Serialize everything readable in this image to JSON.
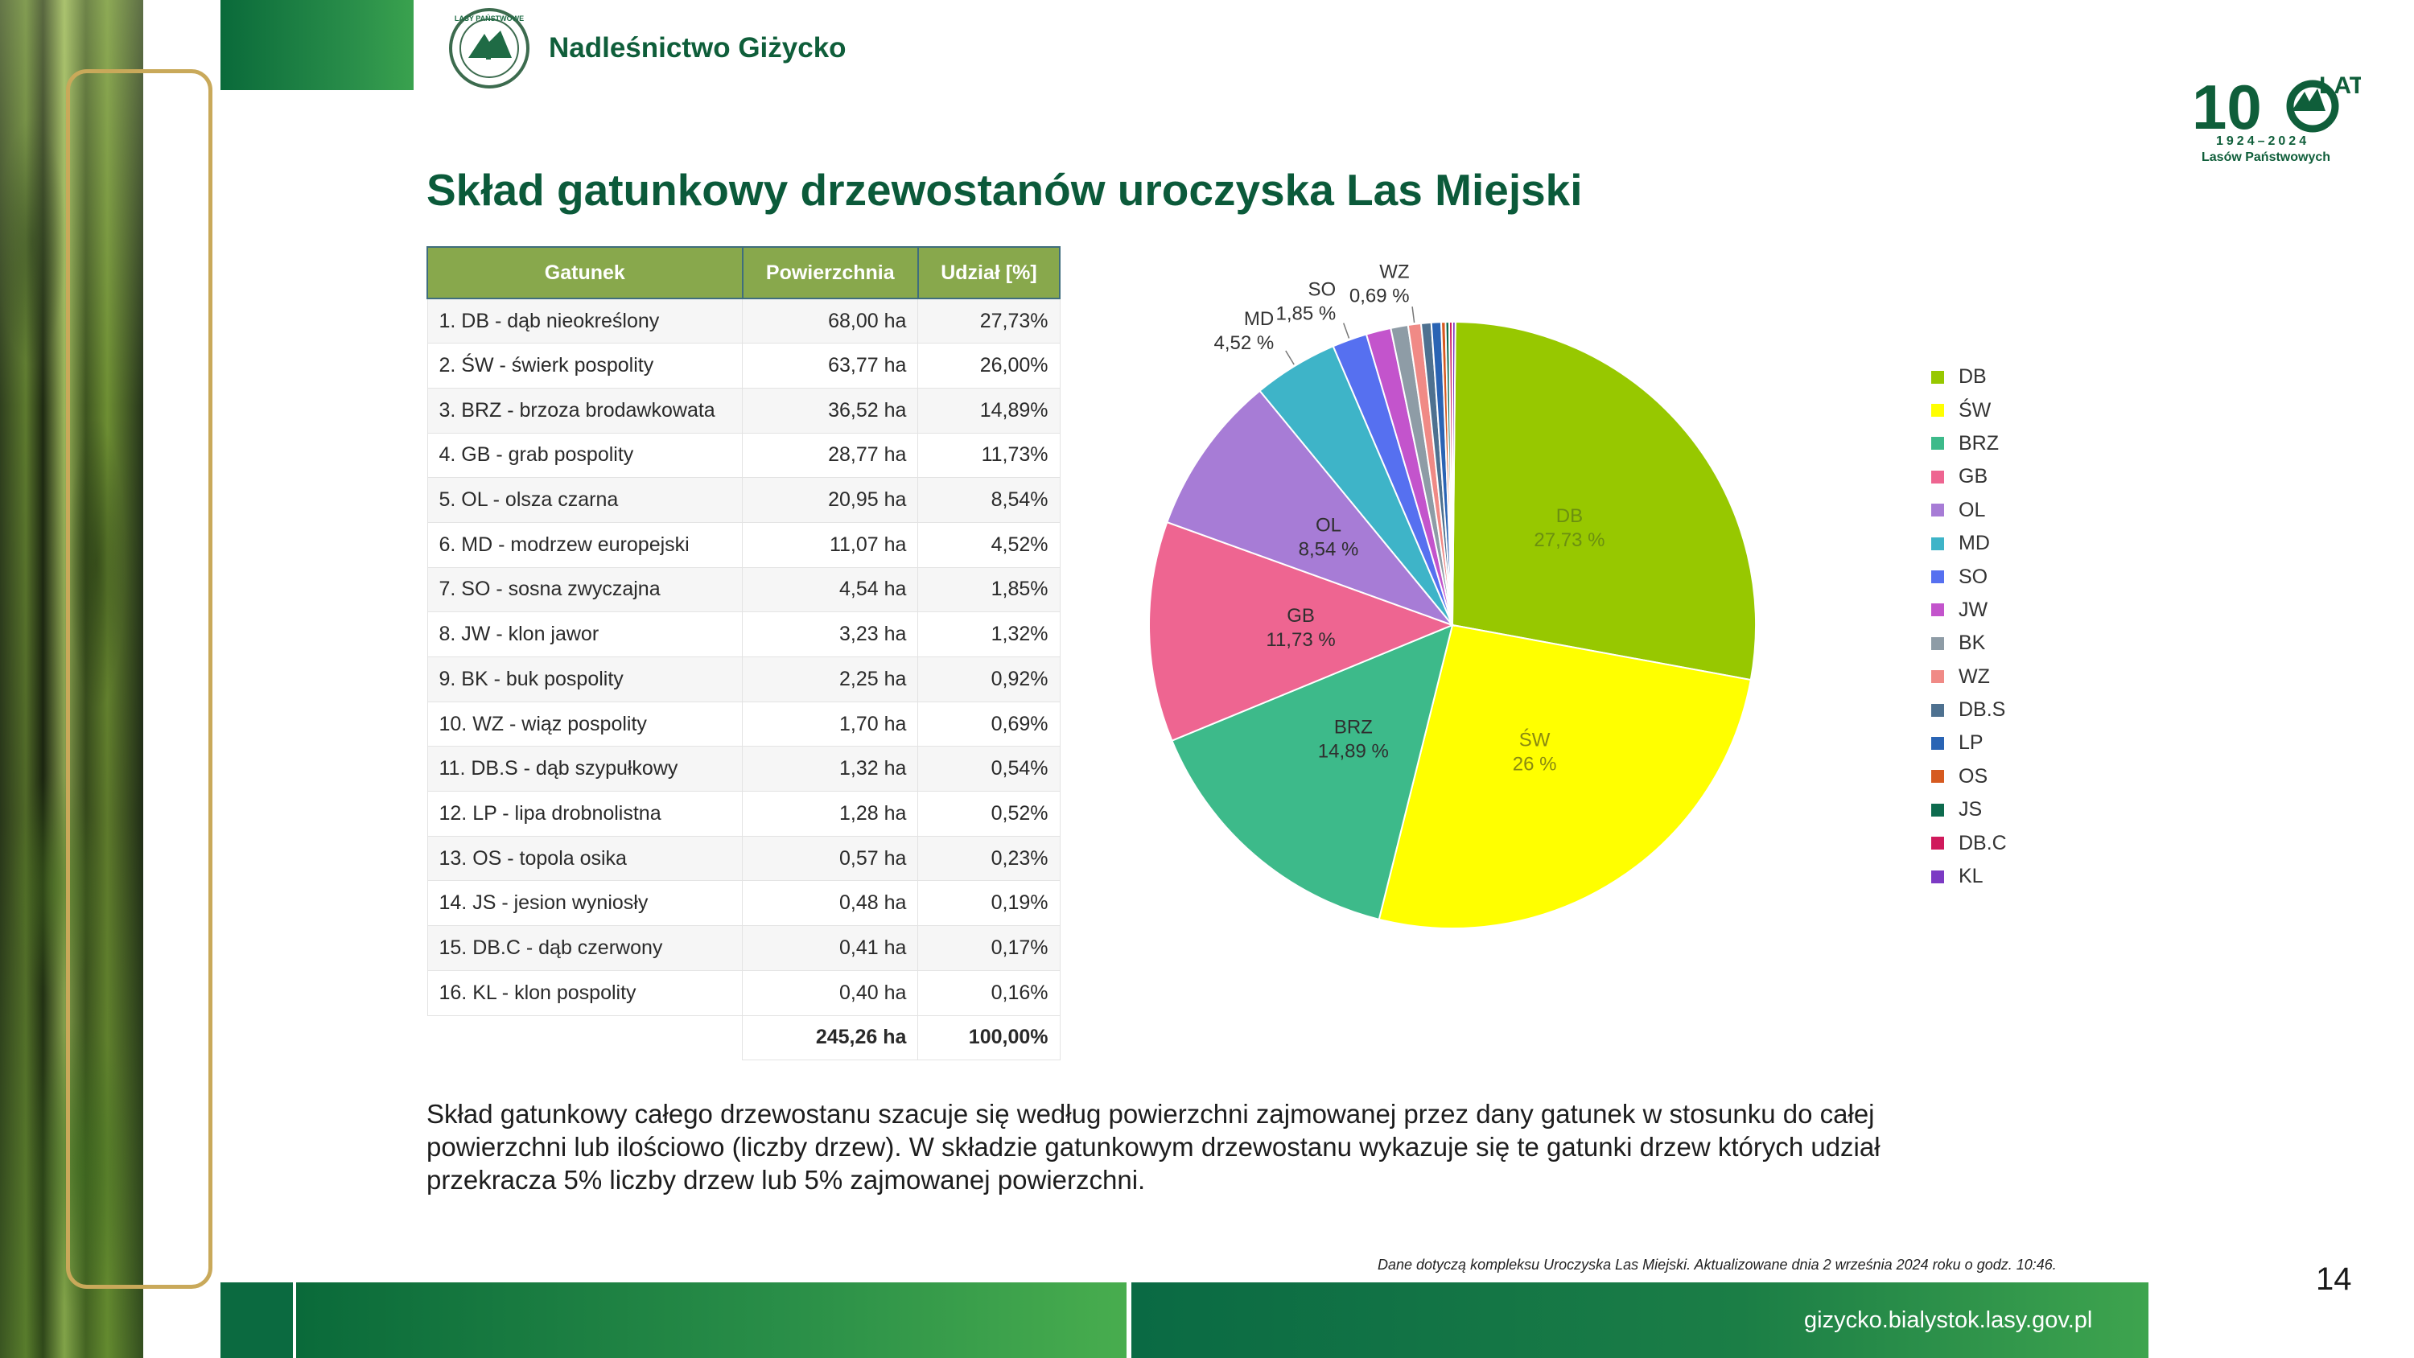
{
  "header": {
    "org_name": "Nadleśnictwo Giżycko",
    "seal_text": "LASY PAŃSTWOWE",
    "jubilee": {
      "number_prefix": "10",
      "lat": "LAT",
      "years": "1924–2024",
      "subtitle": "Lasów Państwowych"
    }
  },
  "title": "Skład gatunkowy drzewostanów uroczyska Las Miejski",
  "table": {
    "columns": [
      "Gatunek",
      "Powierzchnia",
      "Udział [%]"
    ],
    "rows": [
      {
        "name": "1. DB - dąb nieokreślony",
        "area": "68,00 ha",
        "share": "27,73%"
      },
      {
        "name": "2. ŚW - świerk pospolity",
        "area": "63,77 ha",
        "share": "26,00%"
      },
      {
        "name": "3. BRZ - brzoza brodawkowata",
        "area": "36,52 ha",
        "share": "14,89%"
      },
      {
        "name": "4. GB - grab pospolity",
        "area": "28,77 ha",
        "share": "11,73%"
      },
      {
        "name": "5. OL - olsza czarna",
        "area": "20,95 ha",
        "share": "8,54%"
      },
      {
        "name": "6. MD - modrzew europejski",
        "area": "11,07 ha",
        "share": "4,52%"
      },
      {
        "name": "7. SO - sosna zwyczajna",
        "area": "4,54 ha",
        "share": "1,85%"
      },
      {
        "name": "8. JW - klon jawor",
        "area": "3,23 ha",
        "share": "1,32%"
      },
      {
        "name": "9. BK - buk pospolity",
        "area": "2,25 ha",
        "share": "0,92%"
      },
      {
        "name": "10. WZ - wiąz pospolity",
        "area": "1,70 ha",
        "share": "0,69%"
      },
      {
        "name": "11. DB.S - dąb szypułkowy",
        "area": "1,32 ha",
        "share": "0,54%"
      },
      {
        "name": "12. LP - lipa drobnolistna",
        "area": "1,28 ha",
        "share": "0,52%"
      },
      {
        "name": "13. OS - topola osika",
        "area": "0,57 ha",
        "share": "0,23%"
      },
      {
        "name": "14. JS - jesion wyniosły",
        "area": "0,48 ha",
        "share": "0,19%"
      },
      {
        "name": "15. DB.C - dąb czerwony",
        "area": "0,41 ha",
        "share": "0,17%"
      },
      {
        "name": "16. KL - klon pospolity",
        "area": "0,40 ha",
        "share": "0,16%"
      }
    ],
    "total": {
      "area": "245,26 ha",
      "share": "100,00%"
    }
  },
  "chart_data": {
    "type": "pie",
    "labels": [
      "DB",
      "ŚW",
      "BRZ",
      "GB",
      "OL",
      "MD",
      "SO",
      "JW",
      "BK",
      "WZ",
      "DB.S",
      "LP",
      "OS",
      "JS",
      "DB.C",
      "KL"
    ],
    "values": [
      27.73,
      26.0,
      14.89,
      11.73,
      8.54,
      4.52,
      1.85,
      1.32,
      0.92,
      0.69,
      0.54,
      0.52,
      0.23,
      0.19,
      0.17,
      0.16
    ],
    "colors": [
      "#97c800",
      "#ffff00",
      "#3dba8a",
      "#ee6591",
      "#a77cd6",
      "#3eb4c8",
      "#5670f0",
      "#c354cc",
      "#8e9ca6",
      "#f08a86",
      "#4e7190",
      "#2a64b4",
      "#d65a20",
      "#0d6b4e",
      "#d01a5c",
      "#7c3ac4"
    ],
    "data_labels": [
      {
        "series": "DB",
        "name": "DB",
        "value": "27,73 %"
      },
      {
        "series": "ŚW",
        "name": "ŚW",
        "value": "26 %"
      },
      {
        "series": "BRZ",
        "name": "BRZ",
        "value": "14,89 %"
      },
      {
        "series": "GB",
        "name": "GB",
        "value": "11,73 %"
      },
      {
        "series": "OL",
        "name": "OL",
        "value": "8,54 %"
      },
      {
        "series": "MD",
        "name": "MD",
        "value": "4,52 %"
      },
      {
        "series": "SO",
        "name": "SO",
        "value": "1,85 %"
      },
      {
        "series": "WZ",
        "name": "WZ",
        "value": "0,69 %"
      }
    ],
    "legend_position": "right"
  },
  "description": "Skład gatunkowy całego drzewostanu szacuje się według powierzchni zajmowanej przez dany gatunek w stosunku do całej powierzchni lub ilościowo (liczby drzew). W składzie gatunkowym drzewostanu wykazuje się te gatunki drzew których udział przekracza 5% liczby drzew lub 5% zajmowanej powierzchni.",
  "footnote": "Dane dotyczą kompleksu Uroczyska Las Miejski. Aktualizowane dnia 2 września 2024 roku o godz. 10:46.",
  "footer": {
    "url": "gizycko.bialystok.lasy.gov.pl",
    "page_number": "14"
  }
}
